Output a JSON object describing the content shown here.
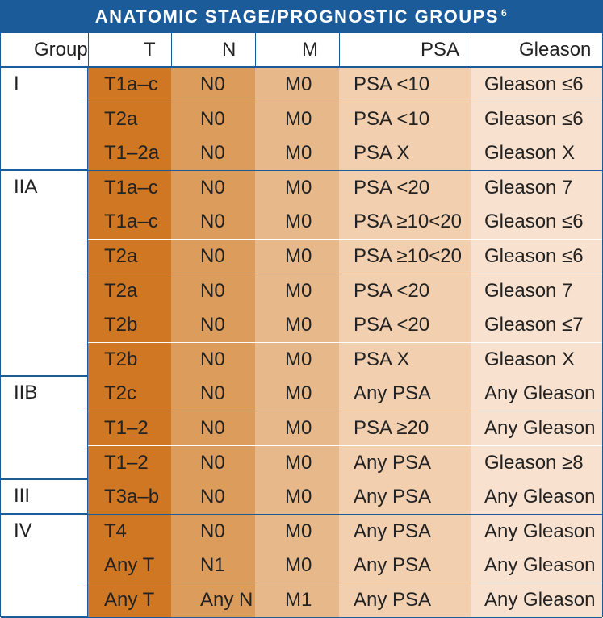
{
  "title": "ANATOMIC STAGE/PROGNOSTIC GROUPS",
  "title_footnote": "6",
  "columns": [
    "Group",
    "T",
    "N",
    "M",
    "PSA",
    "Gleason"
  ],
  "colors": {
    "border": "#1b5b9a",
    "t_column": "#cf7722",
    "n_column": "#dc9c5c",
    "m_column": "#e7b88a",
    "psa_column": "#f1cfaf",
    "gleason_column": "#f8e2cf"
  },
  "groups": [
    {
      "stage": "I",
      "rows": [
        {
          "t": "T1a–c",
          "n": "N0",
          "m": "M0",
          "psa": "PSA <10",
          "gleason": "Gleason ≤6"
        },
        {
          "t": "T2a",
          "n": "N0",
          "m": "M0",
          "psa": "PSA <10",
          "gleason": "Gleason ≤6"
        },
        {
          "t": "T1–2a",
          "n": "N0",
          "m": "M0",
          "psa": "PSA X",
          "gleason": "Gleason X"
        }
      ]
    },
    {
      "stage": "IIA",
      "rows": [
        {
          "t": "T1a–c",
          "n": "N0",
          "m": "M0",
          "psa": "PSA <20",
          "gleason": "Gleason 7"
        },
        {
          "t": "T1a–c",
          "n": "N0",
          "m": "M0",
          "psa": "PSA ≥10<20",
          "gleason": "Gleason ≤6"
        },
        {
          "t": "T2a",
          "n": "N0",
          "m": "M0",
          "psa": "PSA ≥10<20",
          "gleason": "Gleason ≤6"
        },
        {
          "t": "T2a",
          "n": "N0",
          "m": "M0",
          "psa": "PSA <20",
          "gleason": "Gleason 7"
        },
        {
          "t": "T2b",
          "n": "N0",
          "m": "M0",
          "psa": "PSA <20",
          "gleason": "Gleason ≤7"
        },
        {
          "t": "T2b",
          "n": "N0",
          "m": "M0",
          "psa": "PSA X",
          "gleason": "Gleason X"
        }
      ]
    },
    {
      "stage": "IIB",
      "rows": [
        {
          "t": "T2c",
          "n": "N0",
          "m": "M0",
          "psa": "Any PSA",
          "gleason": "Any Gleason"
        },
        {
          "t": "T1–2",
          "n": "N0",
          "m": "M0",
          "psa": "PSA ≥20",
          "gleason": "Any Gleason"
        },
        {
          "t": "T1–2",
          "n": "N0",
          "m": "M0",
          "psa": "Any PSA",
          "gleason": "Gleason ≥8"
        }
      ]
    },
    {
      "stage": "III",
      "rows": [
        {
          "t": "T3a–b",
          "n": "N0",
          "m": "M0",
          "psa": "Any PSA",
          "gleason": "Any Gleason"
        }
      ]
    },
    {
      "stage": "IV",
      "rows": [
        {
          "t": "T4",
          "n": "N0",
          "m": "M0",
          "psa": "Any PSA",
          "gleason": "Any Gleason"
        },
        {
          "t": "Any T",
          "n": "N1",
          "m": "M0",
          "psa": "Any PSA",
          "gleason": "Any Gleason"
        },
        {
          "t": "Any T",
          "n": "Any N",
          "m": "M1",
          "psa": "Any PSA",
          "gleason": "Any Gleason"
        }
      ]
    }
  ]
}
